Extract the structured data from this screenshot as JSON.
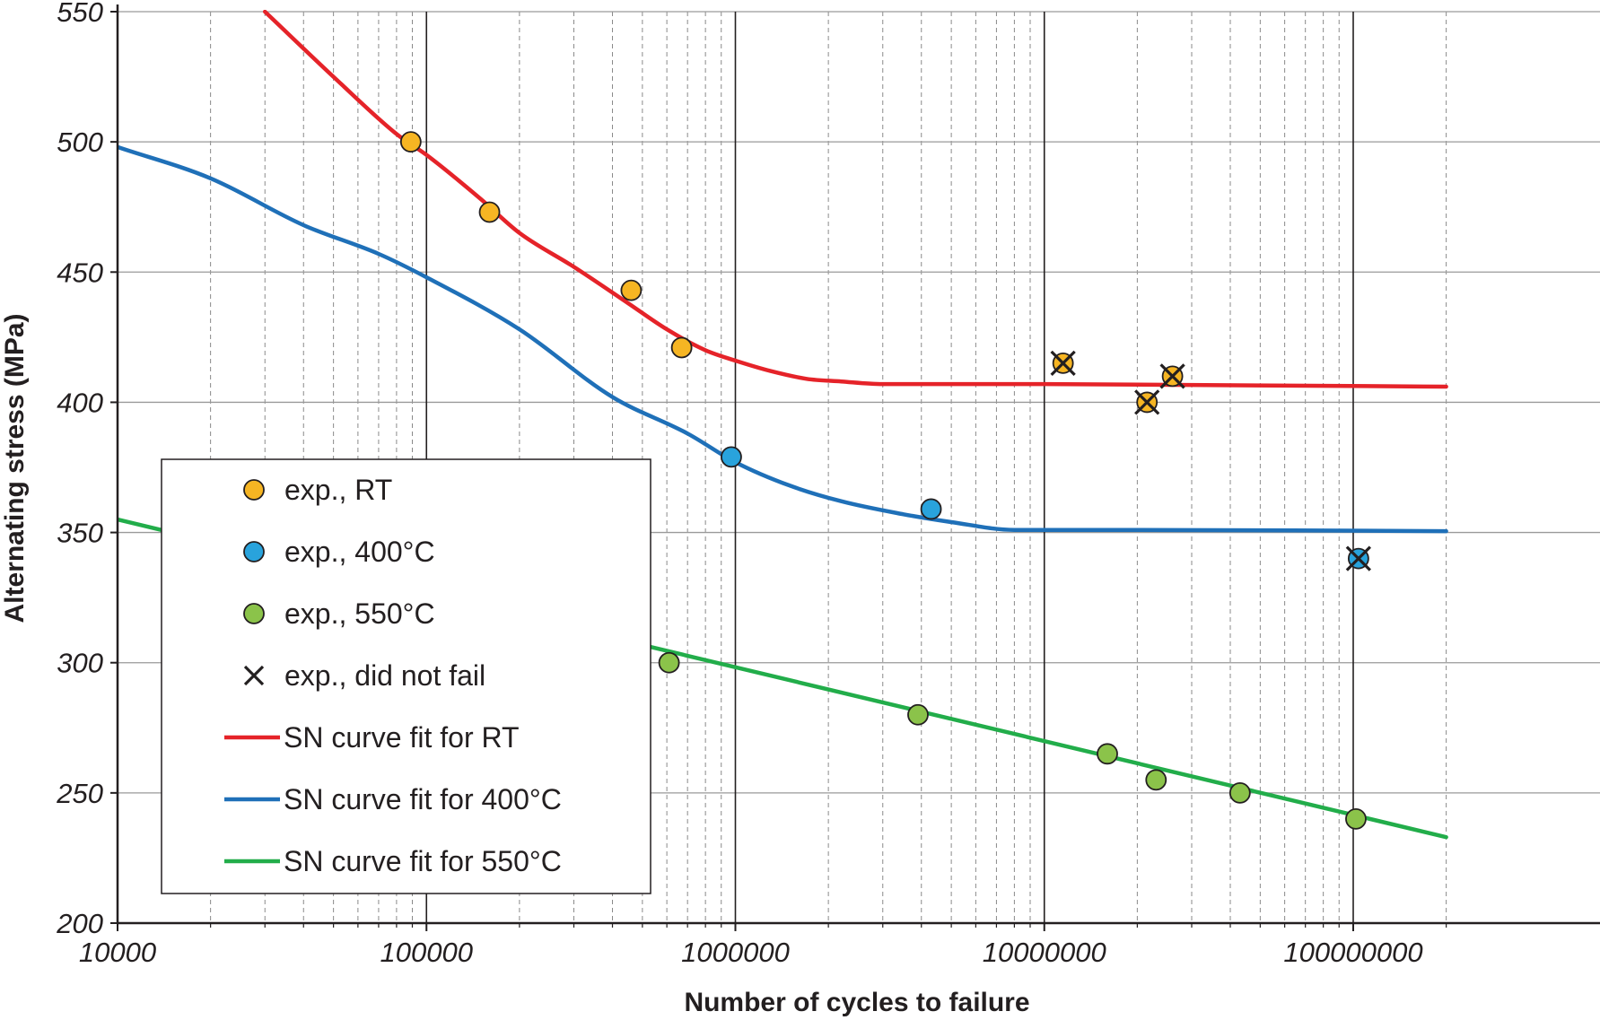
{
  "chart_data": {
    "type": "scatter",
    "title": "",
    "xlabel": "Number of cycles to failure",
    "ylabel": "Alternating stress (MPa)",
    "x_scale": "log",
    "xlim": [
      10000,
      200000000
    ],
    "ylim": [
      200,
      550
    ],
    "x_ticks": [
      "10000",
      "100000",
      "1000000",
      "10000000",
      "100000000"
    ],
    "y_ticks": [
      "200",
      "250",
      "300",
      "350",
      "400",
      "450",
      "500",
      "550"
    ],
    "grid": true,
    "legend_position": "left-middle",
    "colors": {
      "rt_marker": "#f6b523",
      "c400_marker": "#29a3dc",
      "c550_marker": "#8bc34a",
      "rt_curve": "#e52329",
      "c400_curve": "#1f70b8",
      "c550_curve": "#22ad4a"
    },
    "series": [
      {
        "name": "exp., RT",
        "kind": "points",
        "color_key": "rt_marker",
        "points": [
          {
            "x": 89000,
            "y": 500
          },
          {
            "x": 160000,
            "y": 473
          },
          {
            "x": 460000,
            "y": 443
          },
          {
            "x": 670000,
            "y": 421
          },
          {
            "x": 11500000,
            "y": 415,
            "did_not_fail": true
          },
          {
            "x": 21500000,
            "y": 400,
            "did_not_fail": true
          },
          {
            "x": 26000000,
            "y": 410,
            "did_not_fail": true
          }
        ]
      },
      {
        "name": "exp., 400°C",
        "kind": "points",
        "color_key": "c400_marker",
        "points": [
          {
            "x": 970000,
            "y": 379
          },
          {
            "x": 4300000,
            "y": 359
          },
          {
            "x": 104000000,
            "y": 340,
            "did_not_fail": true
          }
        ]
      },
      {
        "name": "exp., 550°C",
        "kind": "points",
        "color_key": "c550_marker",
        "points": [
          {
            "x": 610000,
            "y": 300
          },
          {
            "x": 3900000,
            "y": 280
          },
          {
            "x": 16000000,
            "y": 265
          },
          {
            "x": 23000000,
            "y": 255
          },
          {
            "x": 43000000,
            "y": 250
          },
          {
            "x": 102000000,
            "y": 240
          }
        ]
      },
      {
        "name": "exp., did not fail",
        "kind": "marker-legend"
      },
      {
        "name": "SN curve fit for RT",
        "kind": "curve",
        "color_key": "rt_curve",
        "points": [
          {
            "x": 30000,
            "y": 550
          },
          {
            "x": 50000,
            "y": 525
          },
          {
            "x": 80000,
            "y": 503
          },
          {
            "x": 100000,
            "y": 495
          },
          {
            "x": 150000,
            "y": 478
          },
          {
            "x": 200000,
            "y": 465
          },
          {
            "x": 300000,
            "y": 452
          },
          {
            "x": 450000,
            "y": 438
          },
          {
            "x": 600000,
            "y": 428
          },
          {
            "x": 800000,
            "y": 420
          },
          {
            "x": 1000000,
            "y": 416
          },
          {
            "x": 1300000,
            "y": 412
          },
          {
            "x": 1700000,
            "y": 409
          },
          {
            "x": 2200000,
            "y": 408
          },
          {
            "x": 3000000,
            "y": 407
          },
          {
            "x": 10000000,
            "y": 407
          },
          {
            "x": 200000000,
            "y": 406
          }
        ]
      },
      {
        "name": "SN curve fit for 400°C",
        "kind": "curve",
        "color_key": "c400_curve",
        "points": [
          {
            "x": 10000,
            "y": 498
          },
          {
            "x": 20000,
            "y": 486
          },
          {
            "x": 40000,
            "y": 468
          },
          {
            "x": 70000,
            "y": 457
          },
          {
            "x": 100000,
            "y": 448
          },
          {
            "x": 200000,
            "y": 428
          },
          {
            "x": 400000,
            "y": 402
          },
          {
            "x": 700000,
            "y": 388
          },
          {
            "x": 1000000,
            "y": 377
          },
          {
            "x": 1500000,
            "y": 368
          },
          {
            "x": 2200000,
            "y": 362
          },
          {
            "x": 3500000,
            "y": 357
          },
          {
            "x": 5000000,
            "y": 354
          },
          {
            "x": 8000000,
            "y": 351
          },
          {
            "x": 20000000,
            "y": 351
          },
          {
            "x": 200000000,
            "y": 350.5
          }
        ]
      },
      {
        "name": "SN curve fit for 550°C",
        "kind": "curve",
        "color_key": "c550_curve",
        "points": [
          {
            "x": 10000,
            "y": 355
          },
          {
            "x": 200000000,
            "y": 233
          }
        ]
      }
    ]
  }
}
